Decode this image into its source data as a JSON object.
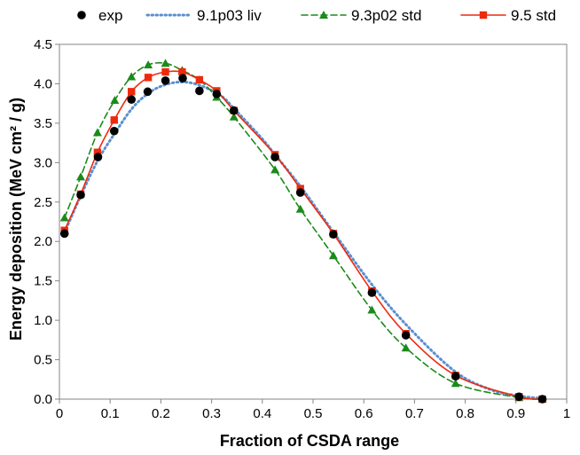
{
  "chart_data": {
    "type": "line",
    "xlabel": "Fraction of CSDA range",
    "ylabel": "Energy deposition (MeV cm² / g)",
    "xlim": [
      0,
      1
    ],
    "ylim": [
      0,
      4.5
    ],
    "xticks": [
      "0",
      "0.1",
      "0.2",
      "0.3",
      "0.4",
      "0.5",
      "0.6",
      "0.7",
      "0.8",
      "0.9",
      "1"
    ],
    "yticks": [
      "0.0",
      "0.5",
      "1.0",
      "1.5",
      "2.0",
      "2.5",
      "3.0",
      "3.5",
      "4.0",
      "4.5"
    ],
    "grid": false,
    "legend_position": "top",
    "series": [
      {
        "name": "exp",
        "style": "markers",
        "marker": "circle",
        "color": "#000000",
        "x": [
          0.01,
          0.042,
          0.076,
          0.108,
          0.142,
          0.174,
          0.209,
          0.243,
          0.276,
          0.31,
          0.344,
          0.425,
          0.475,
          0.54,
          0.616,
          0.683,
          0.781,
          0.906,
          0.952
        ],
        "y": [
          2.1,
          2.59,
          3.07,
          3.4,
          3.8,
          3.9,
          4.04,
          4.07,
          3.91,
          3.87,
          3.66,
          3.07,
          2.62,
          2.09,
          1.35,
          0.81,
          0.29,
          0.03,
          0.0
        ]
      },
      {
        "name": "9.1p03 liv",
        "style": "dotted",
        "color": "#5b8fd0",
        "x": [
          0.01,
          0.04,
          0.075,
          0.11,
          0.145,
          0.18,
          0.215,
          0.25,
          0.285,
          0.32,
          0.345,
          0.4,
          0.425,
          0.475,
          0.54,
          0.62,
          0.69,
          0.78,
          0.85,
          0.906,
          0.952
        ],
        "y": [
          2.11,
          2.55,
          3.02,
          3.38,
          3.7,
          3.9,
          4.0,
          4.02,
          3.96,
          3.84,
          3.68,
          3.3,
          3.1,
          2.7,
          2.12,
          1.42,
          0.9,
          0.35,
          0.12,
          0.04,
          0.01
        ]
      },
      {
        "name": "9.3p02 std",
        "style": "dashed",
        "marker": "triangle",
        "color": "#1a8a1a",
        "x": [
          0.01,
          0.042,
          0.075,
          0.109,
          0.142,
          0.175,
          0.209,
          0.242,
          0.276,
          0.31,
          0.344,
          0.425,
          0.475,
          0.54,
          0.616,
          0.683,
          0.781,
          0.906,
          0.952
        ],
        "y": [
          2.3,
          2.82,
          3.38,
          3.79,
          4.09,
          4.24,
          4.26,
          4.17,
          4.05,
          3.83,
          3.58,
          2.91,
          2.41,
          1.82,
          1.13,
          0.65,
          0.2,
          0.02,
          0.0
        ]
      },
      {
        "name": "9.5 std",
        "style": "solid",
        "marker": "square",
        "color": "#ee2a0d",
        "x": [
          0.01,
          0.042,
          0.075,
          0.108,
          0.142,
          0.175,
          0.209,
          0.242,
          0.276,
          0.31,
          0.344,
          0.425,
          0.475,
          0.54,
          0.616,
          0.683,
          0.781,
          0.906,
          0.952
        ],
        "y": [
          2.14,
          2.6,
          3.13,
          3.54,
          3.9,
          4.08,
          4.15,
          4.15,
          4.05,
          3.91,
          3.66,
          3.1,
          2.67,
          2.1,
          1.37,
          0.83,
          0.3,
          0.03,
          0.0
        ]
      }
    ]
  }
}
